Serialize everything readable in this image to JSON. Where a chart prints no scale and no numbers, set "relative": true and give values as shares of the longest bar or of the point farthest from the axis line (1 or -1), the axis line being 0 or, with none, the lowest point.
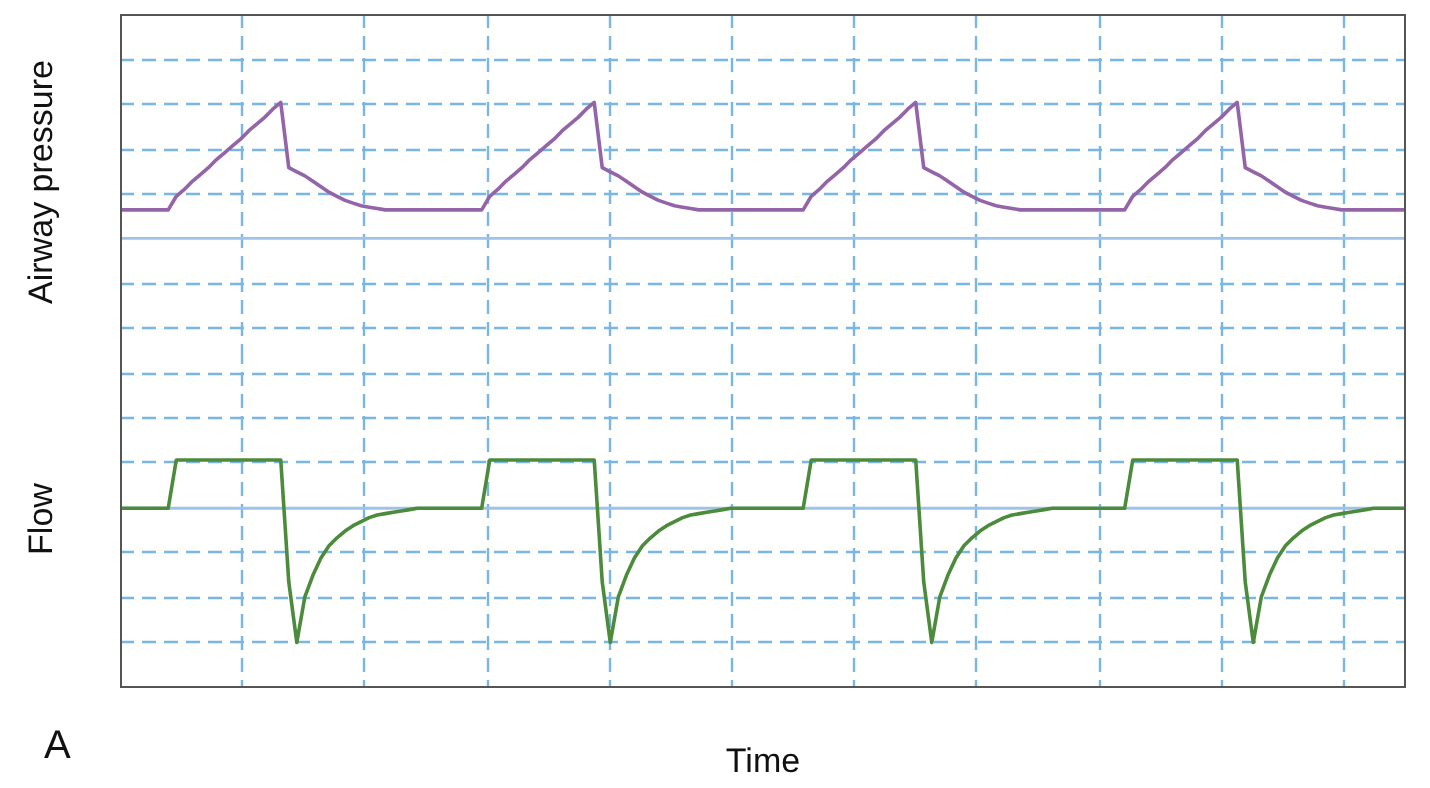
{
  "chart_data": [
    {
      "type": "line",
      "ylabel": "Airway pressure",
      "relative": true,
      "grid": true,
      "ref_lines": [
        {
          "axis": "y",
          "value": 0,
          "color": "#9ec3e6"
        }
      ],
      "categories": [
        null,
        null,
        null,
        null,
        null,
        null,
        null,
        null,
        null,
        null,
        null,
        null,
        null,
        null,
        null,
        null,
        null,
        null,
        null,
        null,
        null,
        null,
        null,
        null,
        null,
        null,
        null,
        null,
        null,
        null,
        null,
        null,
        null,
        null,
        null,
        null,
        null,
        null,
        null,
        null,
        null,
        null,
        null,
        null,
        null,
        null,
        null,
        null,
        null,
        null,
        null,
        null,
        null,
        null,
        null,
        null,
        null,
        null,
        null,
        null,
        null,
        null,
        null,
        null,
        null,
        null,
        null,
        null,
        null,
        null,
        null,
        null,
        null,
        null,
        null,
        null,
        null,
        null,
        null,
        null,
        null,
        null,
        null,
        null,
        null,
        null,
        null,
        null,
        null,
        null,
        null,
        null,
        null,
        null,
        null,
        null,
        null,
        null,
        null,
        null,
        null,
        null,
        null,
        null,
        null,
        null,
        null,
        null,
        null,
        null,
        null,
        null,
        null,
        null,
        null,
        null,
        null,
        null,
        null,
        null,
        null,
        null,
        null,
        null,
        null,
        null,
        null,
        null,
        null,
        null,
        null,
        null,
        null,
        null,
        null,
        null,
        null,
        null,
        null,
        null,
        null,
        null,
        null,
        null,
        null,
        null,
        null,
        null,
        null,
        null,
        null,
        null,
        null,
        null,
        null,
        null,
        null,
        null,
        null,
        null,
        null
      ],
      "series": [
        {
          "color": "#9464a8",
          "values": [
            0.21,
            0.21,
            0.21,
            0.21,
            0.21,
            0.21,
            0.21,
            0.31,
            0.36,
            0.42,
            0.47,
            0.52,
            0.58,
            0.63,
            0.68,
            0.73,
            0.79,
            0.84,
            0.89,
            0.95,
            1,
            0.52,
            0.49,
            0.46,
            0.42,
            0.38,
            0.34,
            0.31,
            0.28,
            0.26,
            0.24,
            0.23,
            0.22,
            0.21,
            0.21,
            0.21,
            0.21,
            0.21,
            0.21,
            0.21,
            0.21,
            0.21,
            0.21,
            0.21,
            0.21,
            0.21,
            0.31,
            0.36,
            0.42,
            0.47,
            0.52,
            0.58,
            0.63,
            0.68,
            0.73,
            0.79,
            0.84,
            0.89,
            0.95,
            1,
            0.52,
            0.49,
            0.46,
            0.42,
            0.38,
            0.34,
            0.31,
            0.28,
            0.26,
            0.24,
            0.23,
            0.22,
            0.21,
            0.21,
            0.21,
            0.21,
            0.21,
            0.21,
            0.21,
            0.21,
            0.21,
            0.21,
            0.21,
            0.21,
            0.21,
            0.21,
            0.31,
            0.36,
            0.42,
            0.47,
            0.52,
            0.58,
            0.63,
            0.68,
            0.73,
            0.79,
            0.84,
            0.89,
            0.95,
            1,
            0.52,
            0.49,
            0.46,
            0.42,
            0.38,
            0.34,
            0.31,
            0.28,
            0.26,
            0.24,
            0.23,
            0.22,
            0.21,
            0.21,
            0.21,
            0.21,
            0.21,
            0.21,
            0.21,
            0.21,
            0.21,
            0.21,
            0.21,
            0.21,
            0.21,
            0.21,
            0.31,
            0.36,
            0.42,
            0.47,
            0.52,
            0.58,
            0.63,
            0.68,
            0.73,
            0.79,
            0.84,
            0.89,
            0.95,
            1,
            0.52,
            0.49,
            0.46,
            0.42,
            0.38,
            0.34,
            0.31,
            0.28,
            0.26,
            0.24,
            0.23,
            0.22,
            0.21,
            0.21,
            0.21,
            0.21,
            0.21,
            0.21,
            0.21,
            0.21,
            0.21
          ]
        }
      ]
    },
    {
      "type": "line",
      "ylabel": "Flow",
      "xlabel": "Time",
      "relative": true,
      "grid": true,
      "ref_lines": [
        {
          "axis": "y",
          "value": 0,
          "color": "#9ec3e6"
        }
      ],
      "annotations": [
        "A"
      ],
      "categories": [
        null,
        null,
        null,
        null,
        null,
        null,
        null,
        null,
        null,
        null,
        null,
        null,
        null,
        null,
        null,
        null,
        null,
        null,
        null,
        null,
        null,
        null,
        null,
        null,
        null,
        null,
        null,
        null,
        null,
        null,
        null,
        null,
        null,
        null,
        null,
        null,
        null,
        null,
        null,
        null,
        null,
        null,
        null,
        null,
        null,
        null,
        null,
        null,
        null,
        null,
        null,
        null,
        null,
        null,
        null,
        null,
        null,
        null,
        null,
        null,
        null,
        null,
        null,
        null,
        null,
        null,
        null,
        null,
        null,
        null,
        null,
        null,
        null,
        null,
        null,
        null,
        null,
        null,
        null,
        null,
        null,
        null,
        null,
        null,
        null,
        null,
        null,
        null,
        null,
        null,
        null,
        null,
        null,
        null,
        null,
        null,
        null,
        null,
        null,
        null,
        null,
        null,
        null,
        null,
        null,
        null,
        null,
        null,
        null,
        null,
        null,
        null,
        null,
        null,
        null,
        null,
        null,
        null,
        null,
        null,
        null,
        null,
        null,
        null,
        null,
        null,
        null,
        null,
        null,
        null,
        null,
        null,
        null,
        null,
        null,
        null,
        null,
        null,
        null,
        null,
        null,
        null,
        null,
        null,
        null,
        null,
        null,
        null,
        null,
        null,
        null,
        null,
        null,
        null,
        null,
        null,
        null,
        null,
        null,
        null,
        null
      ],
      "series": [
        {
          "color": "#4b8b3b",
          "values": [
            0,
            0,
            0,
            0,
            0,
            0,
            0,
            0.36,
            0.36,
            0.36,
            0.36,
            0.36,
            0.36,
            0.36,
            0.36,
            0.36,
            0.36,
            0.36,
            0.36,
            0.36,
            0.36,
            -0.55,
            -1,
            -0.66,
            -0.5,
            -0.37,
            -0.28,
            -0.22,
            -0.17,
            -0.13,
            -0.1,
            -0.07,
            -0.05,
            -0.04,
            -0.03,
            -0.02,
            -0.01,
            0,
            0,
            0,
            0,
            0,
            0,
            0,
            0,
            0,
            0.36,
            0.36,
            0.36,
            0.36,
            0.36,
            0.36,
            0.36,
            0.36,
            0.36,
            0.36,
            0.36,
            0.36,
            0.36,
            0.36,
            -0.55,
            -1,
            -0.66,
            -0.5,
            -0.37,
            -0.28,
            -0.22,
            -0.17,
            -0.13,
            -0.1,
            -0.07,
            -0.05,
            -0.04,
            -0.03,
            -0.02,
            -0.01,
            0,
            0,
            0,
            0,
            0,
            0,
            0,
            0,
            0,
            0,
            0.36,
            0.36,
            0.36,
            0.36,
            0.36,
            0.36,
            0.36,
            0.36,
            0.36,
            0.36,
            0.36,
            0.36,
            0.36,
            0.36,
            -0.55,
            -1,
            -0.66,
            -0.5,
            -0.37,
            -0.28,
            -0.22,
            -0.17,
            -0.13,
            -0.1,
            -0.07,
            -0.05,
            -0.04,
            -0.03,
            -0.02,
            -0.01,
            0,
            0,
            0,
            0,
            0,
            0,
            0,
            0,
            0,
            0,
            0.36,
            0.36,
            0.36,
            0.36,
            0.36,
            0.36,
            0.36,
            0.36,
            0.36,
            0.36,
            0.36,
            0.36,
            0.36,
            0.36,
            -0.55,
            -1,
            -0.66,
            -0.5,
            -0.37,
            -0.28,
            -0.22,
            -0.17,
            -0.13,
            -0.1,
            -0.07,
            -0.05,
            -0.04,
            -0.03,
            -0.02,
            -0.01,
            0,
            0,
            0,
            0,
            0
          ]
        }
      ]
    }
  ]
}
